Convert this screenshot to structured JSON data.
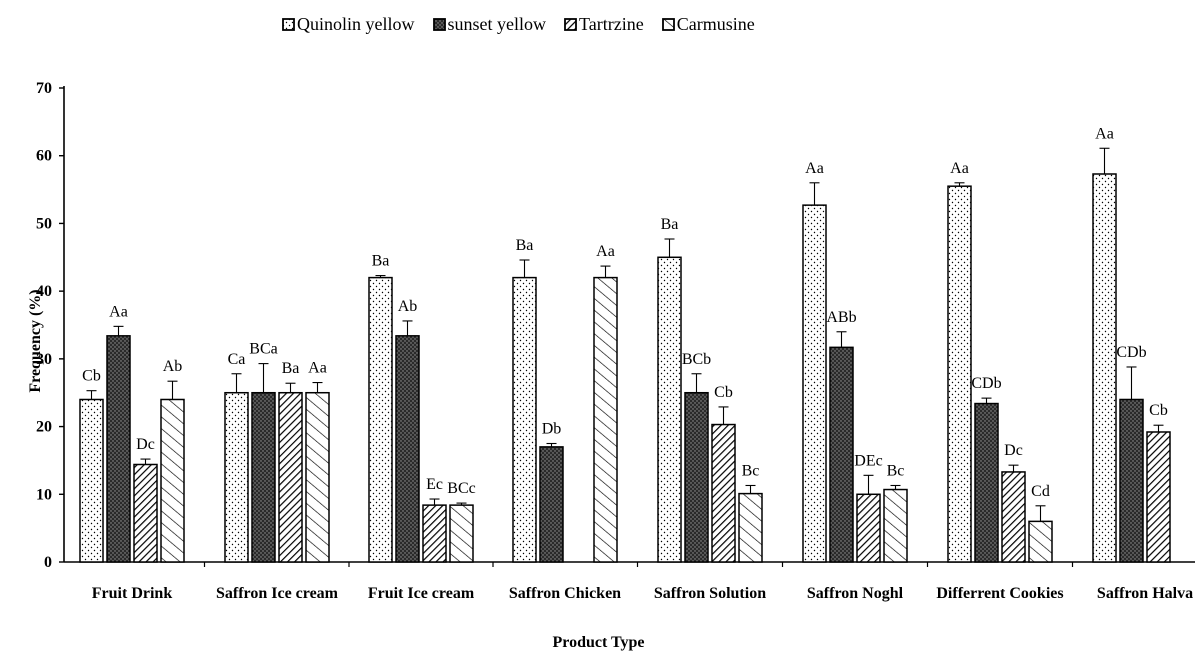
{
  "chart_data": {
    "type": "bar",
    "title": "",
    "xlabel": "Product Type",
    "ylabel": "Frequency (%)",
    "ylim": [
      0,
      70
    ],
    "yticks": [
      0,
      10,
      20,
      30,
      40,
      50,
      60,
      70
    ],
    "grid": false,
    "legend_position": "top",
    "categories": [
      "Fruit Drink",
      "Saffron Ice cream",
      "Fruit Ice cream",
      "Saffron Chicken",
      "Saffron Solution",
      "Saffron Noghl",
      "Differrent Cookies",
      "Saffron Halva"
    ],
    "series": [
      {
        "name": "Quinolin yellow",
        "pattern": "dots",
        "values": [
          24,
          25,
          42,
          42,
          45,
          52.7,
          55.5,
          57.3
        ],
        "errors": [
          1.3,
          2.8,
          0.3,
          2.6,
          2.7,
          3.3,
          0.5,
          3.8
        ],
        "labels": [
          "Cb",
          "Ca",
          "Ba",
          "Ba",
          "Ba",
          "Aa",
          "Aa",
          "Aa"
        ]
      },
      {
        "name": "sunset yellow",
        "pattern": "dark-crosshatch",
        "values": [
          33.4,
          25,
          33.4,
          17,
          25,
          31.7,
          23.4,
          24
        ],
        "errors": [
          1.4,
          4.3,
          2.2,
          0.5,
          2.8,
          2.3,
          0.8,
          4.8
        ],
        "labels": [
          "Aa",
          "BCa",
          "Ab",
          "Db",
          "BCb",
          "ABb",
          "CDb",
          "CDb"
        ]
      },
      {
        "name": "Tartrzine",
        "pattern": "diagonal-hatch",
        "values": [
          14.4,
          25,
          8.4,
          null,
          20.3,
          10,
          13.3,
          19.2
        ],
        "errors": [
          0.8,
          1.4,
          0.9,
          null,
          2.6,
          2.8,
          1.0,
          1.0
        ],
        "labels": [
          "Dc",
          "Ba",
          "Ec",
          "",
          "Cb",
          "DEc",
          "Dc",
          "Cb"
        ]
      },
      {
        "name": "Carmusine",
        "pattern": "cross-diagonal",
        "values": [
          24,
          25,
          8.4,
          42,
          10.1,
          10.7,
          6,
          null
        ],
        "errors": [
          2.7,
          1.5,
          0.3,
          1.7,
          1.2,
          0.6,
          2.3,
          null
        ],
        "labels": [
          "Ab",
          "Aa",
          "BCc",
          "Aa",
          "Bc",
          "Bc",
          "Cd",
          ""
        ]
      }
    ]
  }
}
